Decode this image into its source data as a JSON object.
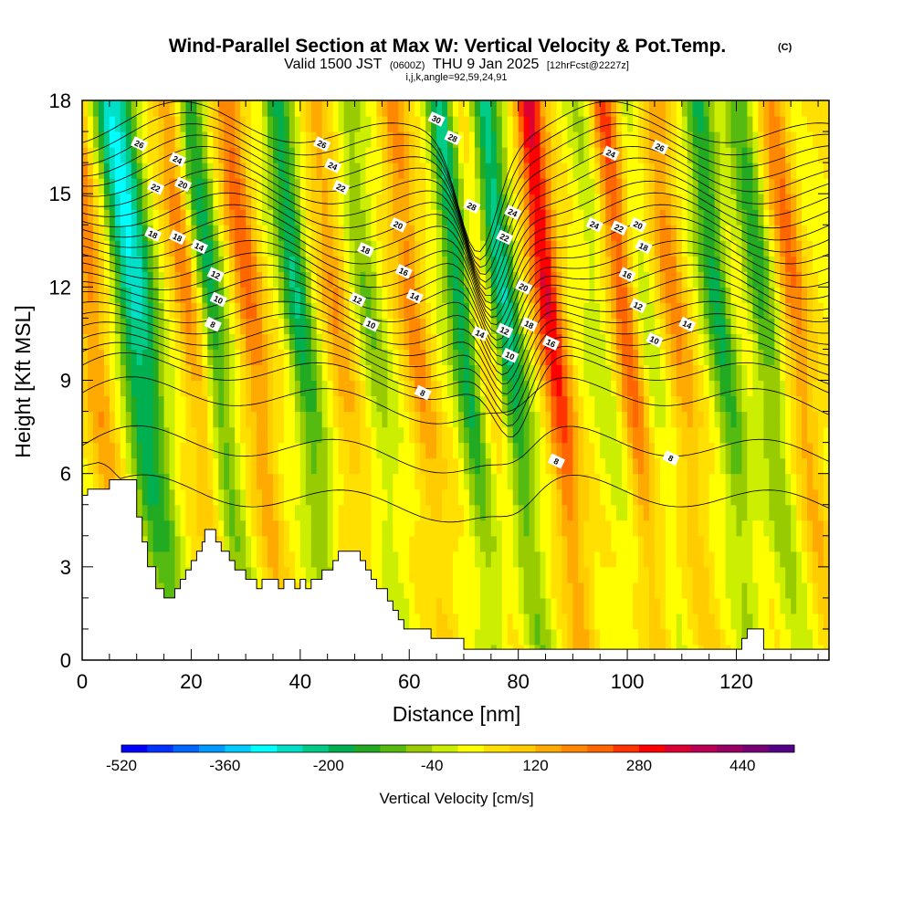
{
  "chart_data": {
    "type": "heatmap",
    "title": "Wind-Parallel Section at Max W: Vertical Velocity & Pot.Temp.",
    "title_mark": "(C)",
    "subtitle": {
      "prefix": "Valid 1500 JST",
      "zulu": "(0600Z)",
      "date": "THU 9 Jan 2025",
      "forecast": "[12hrFcst@2227z]"
    },
    "index_line": "i,j,k,angle=92,59,24,91",
    "xlabel": "Distance [nm]",
    "ylabel": "Height [Kft MSL]",
    "xlim": [
      0,
      137
    ],
    "ylim": [
      0,
      18
    ],
    "x_ticks": [
      0,
      20,
      40,
      60,
      80,
      100,
      120
    ],
    "y_ticks": [
      0,
      3,
      6,
      9,
      12,
      15,
      18
    ],
    "colorbar": {
      "label": "Vertical Velocity [cm/s]",
      "tick_values": [
        -520,
        -360,
        -200,
        -40,
        120,
        280,
        440
      ],
      "range": [
        -520,
        520
      ],
      "colors": [
        "#0000ff",
        "#0033ff",
        "#0066ff",
        "#0099ff",
        "#00ccff",
        "#00ffff",
        "#00e0c8",
        "#00cc88",
        "#00b050",
        "#22aa22",
        "#55bb11",
        "#99cc00",
        "#ccee00",
        "#ffff00",
        "#ffe000",
        "#ffcc00",
        "#ffaa00",
        "#ff8800",
        "#ff6600",
        "#ff3300",
        "#ff0000",
        "#dd0033",
        "#bb0055",
        "#990066",
        "#770077",
        "#550088"
      ]
    },
    "updraft_columns": [
      {
        "x": 3,
        "w": 160
      },
      {
        "x": 10,
        "w": -240
      },
      {
        "x": 13,
        "w": -180
      },
      {
        "x": 21,
        "w": 150
      },
      {
        "x": 25,
        "w": -200
      },
      {
        "x": 32,
        "w": 180
      },
      {
        "x": 41,
        "w": -220
      },
      {
        "x": 48,
        "w": 120
      },
      {
        "x": 54,
        "w": -100
      },
      {
        "x": 62,
        "w": 150
      },
      {
        "x": 71,
        "w": -250
      },
      {
        "x": 74,
        "w": 80
      },
      {
        "x": 79,
        "w": -260
      },
      {
        "x": 87,
        "w": 300
      },
      {
        "x": 96,
        "w": -60
      },
      {
        "x": 101,
        "w": 230
      },
      {
        "x": 104,
        "w": -80
      },
      {
        "x": 110,
        "w": 140
      },
      {
        "x": 118,
        "w": -200
      },
      {
        "x": 126,
        "w": -160
      },
      {
        "x": 132,
        "w": 160
      }
    ],
    "terrain": [
      [
        0,
        5.3
      ],
      [
        1,
        5.3
      ],
      [
        1,
        5.5
      ],
      [
        5,
        5.5
      ],
      [
        5,
        5.8
      ],
      [
        10,
        5.8
      ],
      [
        10,
        4.6
      ],
      [
        11,
        4.6
      ],
      [
        11,
        3.8
      ],
      [
        12,
        3.8
      ],
      [
        12,
        3.0
      ],
      [
        13.5,
        3.0
      ],
      [
        13.5,
        2.3
      ],
      [
        15,
        2.3
      ],
      [
        15,
        2.0
      ],
      [
        17,
        2.0
      ],
      [
        17,
        2.3
      ],
      [
        18,
        2.3
      ],
      [
        18,
        2.6
      ],
      [
        19,
        2.6
      ],
      [
        19,
        2.9
      ],
      [
        20,
        2.9
      ],
      [
        20,
        3.2
      ],
      [
        21,
        3.2
      ],
      [
        21,
        3.5
      ],
      [
        22,
        3.5
      ],
      [
        22,
        3.8
      ],
      [
        22.5,
        3.8
      ],
      [
        22.5,
        4.2
      ],
      [
        24.5,
        4.2
      ],
      [
        24.5,
        3.8
      ],
      [
        25.5,
        3.8
      ],
      [
        25.5,
        3.5
      ],
      [
        27,
        3.5
      ],
      [
        27,
        3.2
      ],
      [
        28,
        3.2
      ],
      [
        28,
        2.9
      ],
      [
        30,
        2.9
      ],
      [
        30,
        2.6
      ],
      [
        32,
        2.6
      ],
      [
        32,
        2.3
      ],
      [
        33,
        2.3
      ],
      [
        33,
        2.6
      ],
      [
        36,
        2.6
      ],
      [
        36,
        2.3
      ],
      [
        37,
        2.3
      ],
      [
        37,
        2.6
      ],
      [
        39,
        2.6
      ],
      [
        39,
        2.3
      ],
      [
        40,
        2.3
      ],
      [
        40,
        2.6
      ],
      [
        41,
        2.6
      ],
      [
        41,
        2.3
      ],
      [
        42,
        2.3
      ],
      [
        42,
        2.6
      ],
      [
        44,
        2.6
      ],
      [
        44,
        2.9
      ],
      [
        46,
        2.9
      ],
      [
        46,
        3.2
      ],
      [
        47,
        3.2
      ],
      [
        47,
        3.5
      ],
      [
        51,
        3.5
      ],
      [
        51,
        3.2
      ],
      [
        52,
        3.2
      ],
      [
        52,
        2.9
      ],
      [
        53,
        2.9
      ],
      [
        53,
        2.6
      ],
      [
        54,
        2.6
      ],
      [
        54,
        2.3
      ],
      [
        56,
        2.3
      ],
      [
        56,
        1.9
      ],
      [
        57,
        1.9
      ],
      [
        57,
        1.6
      ],
      [
        58,
        1.6
      ],
      [
        58,
        1.3
      ],
      [
        59,
        1.3
      ],
      [
        59,
        1.0
      ],
      [
        64,
        1.0
      ],
      [
        64,
        0.7
      ],
      [
        70,
        0.7
      ],
      [
        70,
        0.35
      ],
      [
        121,
        0.35
      ],
      [
        121,
        0.7
      ],
      [
        122,
        0.7
      ],
      [
        122,
        1.0
      ],
      [
        125,
        1.0
      ],
      [
        125,
        0.35
      ],
      [
        137,
        0.35
      ]
    ],
    "theta_contours": {
      "lowest": 6,
      "step": 1,
      "labeled_every": 2,
      "labels": [
        {
          "v": 8,
          "x": 24,
          "y": 10.8
        },
        {
          "v": 10,
          "x": 25,
          "y": 11.6
        },
        {
          "v": 12,
          "x": 24.5,
          "y": 12.4
        },
        {
          "v": 14,
          "x": 21.5,
          "y": 13.3
        },
        {
          "v": 18,
          "x": 13,
          "y": 13.7
        },
        {
          "v": 18,
          "x": 17.5,
          "y": 13.6
        },
        {
          "v": 22,
          "x": 13.5,
          "y": 15.2
        },
        {
          "v": 20,
          "x": 18.5,
          "y": 15.3
        },
        {
          "v": 24,
          "x": 17.5,
          "y": 16.1
        },
        {
          "v": 26,
          "x": 10.5,
          "y": 16.6
        },
        {
          "v": 26,
          "x": 44,
          "y": 16.6
        },
        {
          "v": 24,
          "x": 46,
          "y": 15.9
        },
        {
          "v": 22,
          "x": 47.5,
          "y": 15.2
        },
        {
          "v": 20,
          "x": 58,
          "y": 14.0
        },
        {
          "v": 18,
          "x": 52,
          "y": 13.2
        },
        {
          "v": 16,
          "x": 59,
          "y": 12.5
        },
        {
          "v": 14,
          "x": 61,
          "y": 11.7
        },
        {
          "v": 12,
          "x": 50.5,
          "y": 11.6
        },
        {
          "v": 10,
          "x": 53,
          "y": 10.8
        },
        {
          "v": 8,
          "x": 62.5,
          "y": 8.6
        },
        {
          "v": 30,
          "x": 65,
          "y": 17.4
        },
        {
          "v": 28,
          "x": 68,
          "y": 16.8
        },
        {
          "v": 28,
          "x": 71.5,
          "y": 14.6
        },
        {
          "v": 24,
          "x": 79,
          "y": 14.4
        },
        {
          "v": 22,
          "x": 77.5,
          "y": 13.6
        },
        {
          "v": 20,
          "x": 81,
          "y": 12.0
        },
        {
          "v": 18,
          "x": 82,
          "y": 10.8
        },
        {
          "v": 16,
          "x": 86,
          "y": 10.2
        },
        {
          "v": 14,
          "x": 73,
          "y": 10.5
        },
        {
          "v": 12,
          "x": 77.5,
          "y": 10.6
        },
        {
          "v": 10,
          "x": 78.5,
          "y": 9.8
        },
        {
          "v": 8,
          "x": 87,
          "y": 6.4
        },
        {
          "v": 24,
          "x": 97,
          "y": 16.3
        },
        {
          "v": 26,
          "x": 106,
          "y": 16.5
        },
        {
          "v": 24,
          "x": 94,
          "y": 14.0
        },
        {
          "v": 22,
          "x": 98.5,
          "y": 13.9
        },
        {
          "v": 20,
          "x": 102,
          "y": 14.0
        },
        {
          "v": 18,
          "x": 103,
          "y": 13.3
        },
        {
          "v": 16,
          "x": 100,
          "y": 12.4
        },
        {
          "v": 12,
          "x": 102,
          "y": 11.4
        },
        {
          "v": 14,
          "x": 111,
          "y": 10.8
        },
        {
          "v": 10,
          "x": 105,
          "y": 10.3
        },
        {
          "v": 8,
          "x": 108,
          "y": 6.5
        }
      ]
    }
  }
}
